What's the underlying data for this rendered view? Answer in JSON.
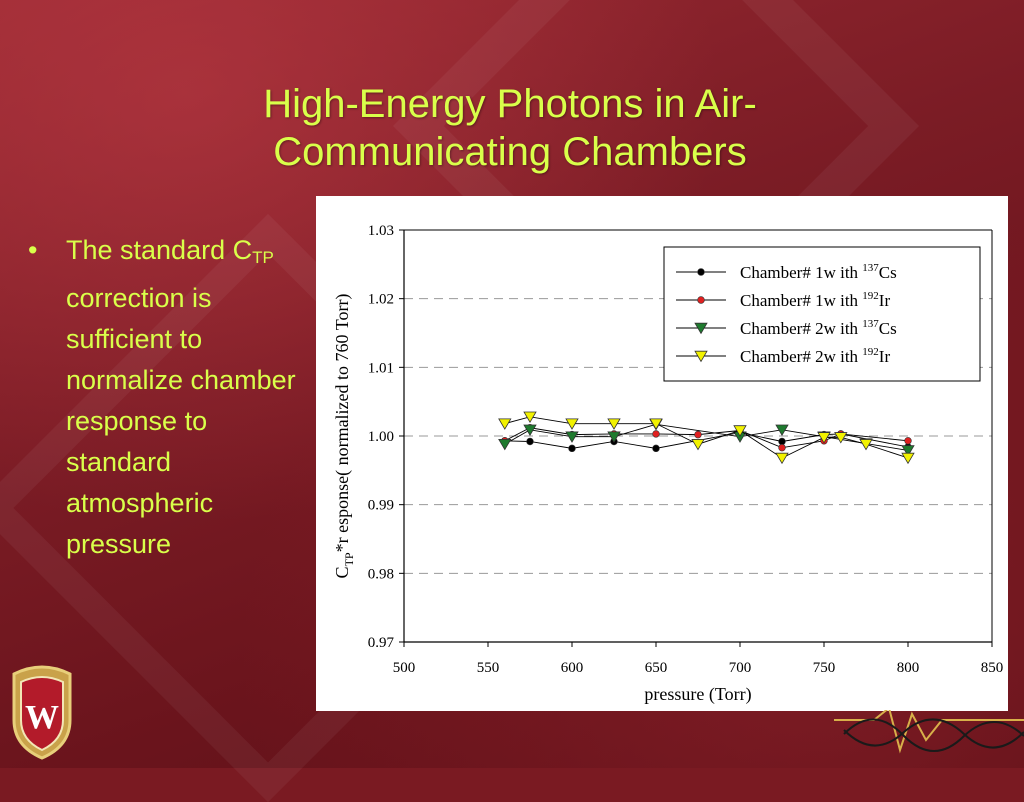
{
  "slide": {
    "title_line1": "High-Energy Photons in Air-",
    "title_line2": "Communicating Chambers",
    "bullet": {
      "marker": "•",
      "text_part1": "The standard C",
      "text_sub": "TP",
      "text_part2": " correction is sufficient to normalize chamber response to standard atmospheric pressure"
    },
    "logo_letter": "W"
  },
  "colors": {
    "accent_text": "#d9ff4a",
    "background": "#7a1a22",
    "series_cs_1w": "#000000",
    "series_ir_1w": "#e02020",
    "series_cs_2w": "#1e7a2e",
    "series_ir_2w": "#f2f200"
  },
  "chart_data": {
    "type": "line",
    "xlabel": "pressure (Torr)",
    "ylabel_prefix": "C",
    "ylabel_sub": "TP",
    "ylabel_rest": "*r esponse( normalized to 760 Torr)",
    "xlim": [
      500,
      850
    ],
    "ylim": [
      0.97,
      1.03
    ],
    "xticks": [
      "500",
      "550",
      "600",
      "650",
      "700",
      "750",
      "800",
      "850"
    ],
    "yticks": [
      "0.97",
      "0.98",
      "0.99",
      "1.00",
      "1.01",
      "1.02",
      "1.03"
    ],
    "grid": "horizontal dashed",
    "legend_position": "top-right",
    "series": [
      {
        "name_pre": "Chamber# 1w ith ",
        "name_sup": "137",
        "name_post": "Cs",
        "marker": "circle",
        "color": "#000000",
        "x": [
          560,
          575,
          600,
          625,
          650,
          700,
          725,
          750,
          760,
          800
        ],
        "y": [
          0.9993,
          0.9992,
          0.9982,
          0.9992,
          0.9982,
          1.0005,
          0.9992,
          1.0002,
          1.0003,
          0.9984
        ]
      },
      {
        "name_pre": "Chamber# 1w ith ",
        "name_sup": "192",
        "name_post": "Ir",
        "marker": "circle",
        "color": "#e02020",
        "x": [
          560,
          575,
          600,
          625,
          650,
          675,
          700,
          725,
          750,
          760,
          800
        ],
        "y": [
          0.9993,
          1.0012,
          1.0002,
          1.0003,
          1.0003,
          1.0002,
          1.0008,
          0.9983,
          0.9993,
          1.0003,
          0.9993
        ]
      },
      {
        "name_pre": "Chamber# 2w ith ",
        "name_sup": "137",
        "name_post": "Cs",
        "marker": "triangle-down",
        "color": "#1e7a2e",
        "x": [
          560,
          575,
          600,
          625,
          650,
          700,
          725,
          750,
          775,
          800
        ],
        "y": [
          0.9988,
          1.0009,
          0.9999,
          0.9999,
          1.0017,
          0.9999,
          1.0009,
          0.9999,
          0.9989,
          0.9979
        ]
      },
      {
        "name_pre": "Chamber# 2w ith ",
        "name_sup": "192",
        "name_post": "Ir",
        "marker": "triangle-down",
        "color": "#f2f200",
        "x": [
          560,
          575,
          600,
          625,
          650,
          675,
          700,
          725,
          750,
          760,
          775,
          800
        ],
        "y": [
          1.0018,
          1.0028,
          1.0018,
          1.0018,
          1.0018,
          0.9988,
          1.0008,
          0.9968,
          0.9998,
          0.9998,
          0.9988,
          0.9968
        ]
      }
    ]
  }
}
